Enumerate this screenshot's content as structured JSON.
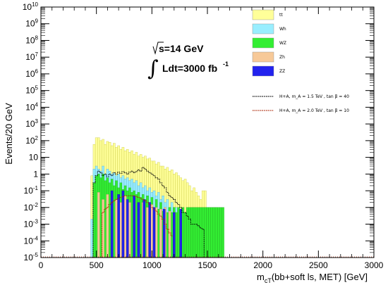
{
  "chart_data": {
    "type": "bar",
    "xlabel_main": "m",
    "xlabel_sub": "cT",
    "xlabel_rest": "(bb+soft ls, MET) [GeV]",
    "ylabel": "Events/20 GeV",
    "xlim": [
      0,
      3000
    ],
    "ylim_log10": [
      -5,
      10
    ],
    "x_ticks": [
      "0",
      "500",
      "1000",
      "1500",
      "2000",
      "2500",
      "3000"
    ],
    "y_ticks": [
      {
        "base": "10",
        "exp": "10"
      },
      {
        "base": "10",
        "exp": "9"
      },
      {
        "base": "10",
        "exp": "8"
      },
      {
        "base": "10",
        "exp": "7"
      },
      {
        "base": "10",
        "exp": "6"
      },
      {
        "base": "10",
        "exp": "5"
      },
      {
        "base": "10",
        "exp": "4"
      },
      {
        "base": "10",
        "exp": "3"
      },
      {
        "base": "10",
        "exp": "2"
      },
      {
        "base": "10",
        "exp": ""
      },
      {
        "base": "1",
        "exp": ""
      },
      {
        "base": "10",
        "exp": "-1"
      },
      {
        "base": "10",
        "exp": "-2"
      },
      {
        "base": "10",
        "exp": "-3"
      },
      {
        "base": "10",
        "exp": "-4"
      },
      {
        "base": "10",
        "exp": "-5"
      }
    ],
    "annotation": {
      "sqrt_line": "s=14 GeV",
      "lumi_main": "Ldt=3000 fb",
      "lumi_exp": "-1"
    },
    "legend": [
      {
        "label": "tt",
        "color": "#ffff99"
      },
      {
        "label": "Wh",
        "color": "#99eeff"
      },
      {
        "label": "WZ",
        "color": "#33ee33"
      },
      {
        "label": "Zh",
        "color": "#f7c998"
      },
      {
        "label": "ZZ",
        "color": "#2222ee"
      },
      {
        "label": "H+A,  m_A = 1.5  TeV  ,  tan β = 40",
        "color": "#000000",
        "dash": true
      },
      {
        "label": "H+A,  m_A = 2.0  TeV  ,  tan β = 10",
        "color": "#aa2200",
        "dash": true
      }
    ],
    "bin_width": 20,
    "series": [
      {
        "name": "tt",
        "color": "#ffff99",
        "stroke": "#c9c94a",
        "x_start": 450,
        "values": [
          0.8,
          60,
          150,
          150,
          100,
          120,
          60,
          90,
          80,
          50,
          70,
          40,
          50,
          30,
          40,
          25,
          30,
          20,
          25,
          15,
          20,
          12,
          15,
          10,
          12,
          8,
          9,
          6,
          6,
          4,
          5,
          3,
          3,
          2,
          2.5,
          1.5,
          1.8,
          1,
          1.2,
          0.8,
          0.6,
          0.4,
          0.5,
          0.3,
          0.2,
          0.1,
          0.15,
          0.08,
          0.05,
          0.03,
          0.1,
          0.1,
          0.01,
          0.01,
          0.01,
          0.01,
          0.01
        ]
      },
      {
        "name": "Wh",
        "color": "#99eeff",
        "stroke": "#55aacc",
        "x_start": 450,
        "values": [
          0.002,
          2,
          3,
          2,
          1.5,
          3,
          1,
          2,
          1.5,
          1,
          1.2,
          0.8,
          1,
          0.6,
          0.8,
          0.5,
          0.6,
          0.4,
          0.5,
          0.3,
          0.4,
          0.2,
          0.3,
          0.15,
          0.2,
          0.1,
          0.15,
          0.08,
          0.1,
          0.05,
          0.08,
          0.03,
          0.05,
          0.02,
          0.03,
          0.01,
          0.02,
          0.01,
          0.01,
          0.005,
          0.005,
          0.002
        ]
      },
      {
        "name": "WZ",
        "color": "#33ee33",
        "stroke": "#22aa22",
        "x_start": 470,
        "values": [
          0.3,
          0.8,
          1,
          0.6,
          1,
          0.4,
          0.6,
          0.3,
          0.5,
          0.2,
          0.4,
          0.15,
          0.3,
          0.12,
          0.2,
          0.1,
          0.15,
          0.08,
          0.1,
          0.06,
          0.08,
          0.04,
          0.06,
          0.03,
          0.05,
          0.02,
          0.04,
          0.01,
          0.03,
          0.008,
          0.02,
          0.006,
          0.01,
          0.005,
          0.01,
          0.005,
          0.01,
          0.005,
          0.01,
          0.005,
          0.01,
          0.005,
          0.01,
          0.01,
          0.01,
          0.01,
          0.01,
          0.01,
          0.01,
          0.01,
          0.01,
          0.01,
          0.01,
          0.01,
          0.01,
          0.01,
          0.01,
          0.01,
          0.01
        ]
      },
      {
        "name": "Zh",
        "color": "#f7c998",
        "stroke": "#cc9966",
        "bars": [
          [
            510,
            0.08
          ],
          [
            550,
            0.03
          ],
          [
            590,
            0.06
          ],
          [
            630,
            0.04
          ],
          [
            670,
            0.03
          ],
          [
            710,
            0.02
          ],
          [
            750,
            0.05
          ],
          [
            790,
            0.02
          ],
          [
            830,
            0.04
          ],
          [
            870,
            0.02
          ],
          [
            910,
            0.02
          ],
          [
            950,
            0.01
          ],
          [
            990,
            0.015
          ],
          [
            1030,
            0.01
          ],
          [
            1070,
            0.008
          ],
          [
            1110,
            0.01
          ],
          [
            1150,
            0.006
          ],
          [
            1190,
            0.005
          ]
        ]
      },
      {
        "name": "ZZ",
        "color": "#2222ee",
        "stroke": "#1111aa",
        "bars": [
          [
            630,
            0.1
          ],
          [
            690,
            0.06
          ],
          [
            730,
            0.1
          ],
          [
            770,
            0.03
          ],
          [
            830,
            0.05
          ],
          [
            870,
            0.02
          ],
          [
            920,
            0.03
          ],
          [
            970,
            0.02
          ],
          [
            1010,
            0.01
          ],
          [
            1100,
            0.008
          ],
          [
            1190,
            0.005
          ],
          [
            1250,
            0.008
          ]
        ]
      }
    ],
    "signals": [
      {
        "name": "H+A, m_A=1.5 TeV, tan β=40",
        "color": "#000000",
        "x_start": 470,
        "values": [
          0.3,
          0.8,
          1.5,
          1.2,
          0.8,
          1,
          0.7,
          1,
          0.8,
          1.2,
          1,
          1.3,
          1.1,
          1.4,
          1.2,
          1,
          1.3,
          1.5,
          1.2,
          1.4,
          1.8,
          1.5,
          2.5,
          2,
          1.5,
          1.2,
          1,
          0.8,
          0.6,
          0.5,
          0.3,
          0.2,
          0.15,
          0.08,
          0.05,
          0.04,
          0.03,
          0.02,
          0.015,
          0.01,
          0.005,
          0.005,
          0.003,
          0.002,
          0.001,
          0.001,
          0.001,
          0.0008,
          0.0006,
          0.0005,
          1e-05
        ]
      },
      {
        "name": "H+A, m_A=2.0 TeV, tan β=10",
        "color": "#aa2200",
        "x_start": 550,
        "values": [
          0.005,
          0.008,
          0.01,
          0.015,
          0.02,
          0.025,
          0.03,
          0.035,
          0.04,
          0.045,
          0.05,
          0.05,
          0.05,
          0.05,
          0.05,
          0.045,
          0.04,
          0.035,
          0.03,
          0.025,
          0.02,
          0.015,
          0.01,
          0.008,
          0.006,
          0.004,
          0.003,
          0.002,
          0.001,
          0.0005,
          0.0003,
          0.0002
        ]
      }
    ]
  }
}
